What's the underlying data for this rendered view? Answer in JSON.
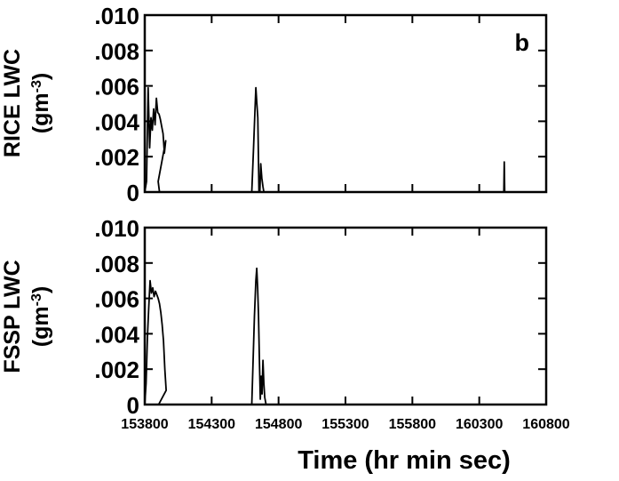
{
  "chart_data": [
    {
      "type": "line",
      "panel_label": "b",
      "ylabel_line1": "RICE LWC",
      "ylabel_line2": "(gm",
      "ylabel_unit_exp": "-3",
      "ylabel_line2_close": ")",
      "ylim": [
        0,
        0.01
      ],
      "yticks": [
        0,
        0.002,
        0.004,
        0.006,
        0.008,
        0.01
      ],
      "ytick_labels": [
        "0",
        ".002",
        ".004",
        ".006",
        ".008",
        ".010"
      ],
      "xlim": [
        153800,
        160800
      ],
      "xticks": [
        153800,
        154300,
        154800,
        155300,
        155800,
        160300,
        160800
      ],
      "grid": false,
      "series": [
        {
          "x": [
            153800,
            153808,
            153815,
            153822,
            153828,
            153834,
            153840,
            153846,
            153852,
            153858,
            153864,
            153870,
            153876,
            153882,
            153888,
            153894,
            153900,
            153906
          ],
          "y": [
            0.0,
            0.0006,
            0.0059,
            0.0025,
            0.0042,
            0.0035,
            0.0047,
            0.0038,
            0.0053,
            0.0045,
            0.0044,
            0.0041,
            0.0037,
            0.0033,
            0.0022,
            0.0029,
            0.0006,
            0.0
          ]
        },
        {
          "x": [
            154600,
            154608,
            154614,
            154618,
            154622,
            154627,
            154632,
            154636,
            154640,
            154645,
            154650,
            154654
          ],
          "y": [
            0.0,
            0.0025,
            0.0045,
            0.0059,
            0.0051,
            0.0042,
            0.0,
            0.0,
            0.0016,
            0.0008,
            0.0003,
            0.0
          ]
        },
        {
          "x": [
            160450,
            160452,
            160454
          ],
          "y": [
            0.0,
            0.0017,
            0.0
          ]
        }
      ]
    },
    {
      "type": "line",
      "ylabel_line1": "FSSP LWC",
      "ylabel_line2": "(gm",
      "ylabel_unit_exp": "-3",
      "ylabel_line2_close": ")",
      "xlabel": "Time (hr min sec)",
      "ylim": [
        0,
        0.01
      ],
      "yticks": [
        0,
        0.002,
        0.004,
        0.006,
        0.008,
        0.01
      ],
      "ytick_labels": [
        "0",
        ".002",
        ".004",
        ".006",
        ".008",
        ".010"
      ],
      "xlim": [
        153800,
        160800
      ],
      "xticks": [
        153800,
        154300,
        154800,
        155300,
        155800,
        160300,
        160800
      ],
      "xtick_labels": [
        "153800",
        "154300",
        "154800",
        "155300",
        "155800",
        "160300",
        "160800"
      ],
      "grid": false,
      "series": [
        {
          "x": [
            153800,
            153806,
            153812,
            153818,
            153824,
            153830,
            153836,
            153842,
            153848,
            153854,
            153860,
            153866,
            153872,
            153878,
            153884,
            153890,
            153896,
            153902
          ],
          "y": [
            0.0,
            0.0012,
            0.0038,
            0.0055,
            0.007,
            0.0063,
            0.0066,
            0.0061,
            0.0064,
            0.0062,
            0.006,
            0.0057,
            0.0052,
            0.0045,
            0.0036,
            0.002,
            0.0008,
            0.0
          ]
        },
        {
          "x": [
            154600,
            154606,
            154612,
            154618,
            154622,
            154626,
            154630,
            154634,
            154638,
            154642,
            154646,
            154650,
            154654,
            154658,
            154664
          ],
          "y": [
            0.0,
            0.0025,
            0.005,
            0.007,
            0.0077,
            0.0066,
            0.005,
            0.0025,
            0.0003,
            0.0016,
            0.0006,
            0.0025,
            0.0012,
            0.0004,
            0.0
          ]
        }
      ]
    }
  ]
}
